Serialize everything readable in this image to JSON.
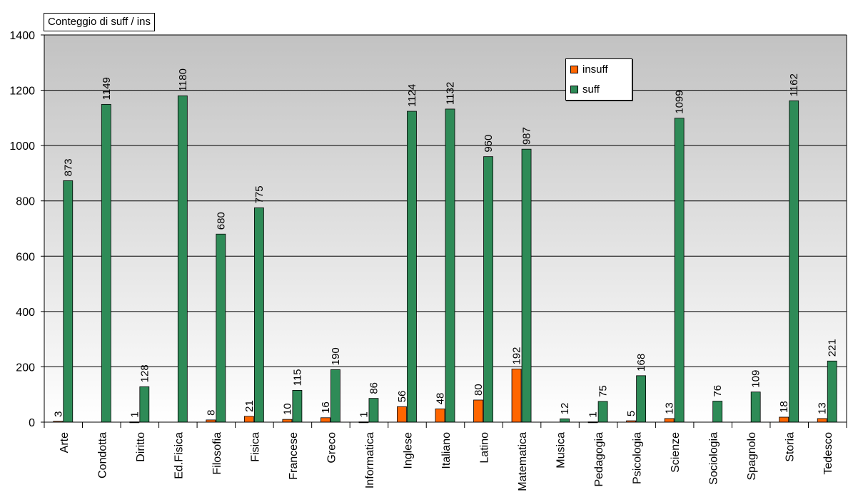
{
  "chart_data": {
    "type": "bar",
    "title": "Conteggio di suff / ins",
    "categories": [
      "Arte",
      "Condotta",
      "Diritto",
      "Ed.Fisica",
      "Filosofia",
      "Fisica",
      "Francese",
      "Greco",
      "Informatica",
      "Inglese",
      "Italiano",
      "Latino",
      "Matematica",
      "Musica",
      "Pedagogia",
      "Psicologia",
      "Scienze",
      "Sociologia",
      "Spagnolo",
      "Storia",
      "Tedesco"
    ],
    "series": [
      {
        "name": "insuff",
        "color": "#ff6600",
        "values": [
          3,
          0,
          1,
          0,
          8,
          21,
          10,
          16,
          1,
          56,
          48,
          80,
          192,
          0,
          1,
          5,
          13,
          0,
          0,
          18,
          13
        ],
        "labels": [
          "3",
          "",
          "1",
          "",
          "8",
          "21",
          "10",
          "16",
          "1",
          "56",
          "48",
          "80",
          "192",
          "",
          "1",
          "5",
          "13",
          "",
          "",
          "18",
          "13"
        ]
      },
      {
        "name": "suff",
        "color": "#2e8b57",
        "values": [
          873,
          1149,
          128,
          1180,
          680,
          775,
          115,
          190,
          86,
          1124,
          1132,
          960,
          987,
          12,
          75,
          168,
          1099,
          76,
          109,
          1162,
          221
        ],
        "labels": [
          "873",
          "1149",
          "128",
          "1180",
          "680",
          "775",
          "115",
          "190",
          "86",
          "1124",
          "1132",
          "960",
          "987",
          "12",
          "75",
          "168",
          "1099",
          "76",
          "109",
          "1162",
          "221"
        ]
      }
    ],
    "ylim": [
      0,
      1400
    ],
    "yticks": [
      "0",
      "200",
      "400",
      "600",
      "800",
      "1000",
      "1200",
      "1400"
    ],
    "grid": true,
    "legend": "top-right"
  }
}
